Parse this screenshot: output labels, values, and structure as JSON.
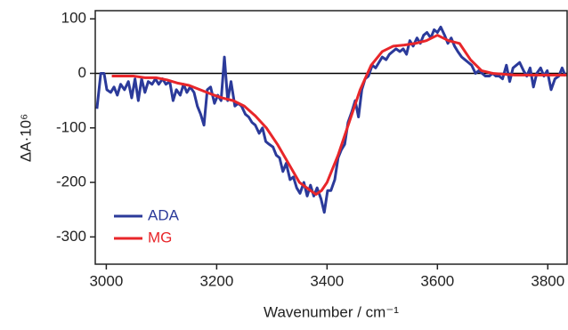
{
  "chart_data": {
    "type": "line",
    "x_label": "Wavenumber / cm⁻¹",
    "y_label": "ΔA·10⁶",
    "xlim": [
      2980,
      3835
    ],
    "ylim": [
      -350,
      115
    ],
    "xticks": [
      3000,
      3200,
      3400,
      3600,
      3800
    ],
    "yticks": [
      -300,
      -200,
      -100,
      0,
      100
    ],
    "zero_line": true,
    "legend": "lower-left",
    "series": [
      {
        "name": "ADA",
        "color": "#2b3a9a",
        "x": [
          2983,
          2990,
          2996,
          3001,
          3008,
          3014,
          3020,
          3026,
          3033,
          3040,
          3046,
          3052,
          3058,
          3064,
          3070,
          3076,
          3083,
          3089,
          3095,
          3102,
          3108,
          3115,
          3121,
          3127,
          3134,
          3140,
          3146,
          3152,
          3159,
          3165,
          3171,
          3177,
          3183,
          3189,
          3196,
          3202,
          3208,
          3214,
          3220,
          3226,
          3233,
          3239,
          3245,
          3252,
          3258,
          3264,
          3270,
          3277,
          3283,
          3289,
          3295,
          3302,
          3308,
          3314,
          3320,
          3326,
          3333,
          3339,
          3345,
          3351,
          3358,
          3364,
          3370,
          3376,
          3382,
          3389,
          3395,
          3401,
          3407,
          3414,
          3420,
          3426,
          3432,
          3438,
          3445,
          3451,
          3457,
          3463,
          3469,
          3475,
          3482,
          3488,
          3494,
          3500,
          3507,
          3513,
          3519,
          3525,
          3532,
          3538,
          3544,
          3550,
          3556,
          3563,
          3569,
          3575,
          3581,
          3588,
          3594,
          3600,
          3606,
          3613,
          3619,
          3625,
          3631,
          3637,
          3644,
          3650,
          3656,
          3662,
          3669,
          3675,
          3681,
          3687,
          3694,
          3700,
          3706,
          3712,
          3718,
          3725,
          3731,
          3737,
          3743,
          3749,
          3756,
          3762,
          3768,
          3774,
          3780,
          3787,
          3793,
          3799,
          3806,
          3813,
          3820,
          3826,
          3832
        ],
        "values": [
          -65,
          0,
          0,
          -30,
          -35,
          -25,
          -40,
          -20,
          -30,
          -15,
          -45,
          -10,
          -50,
          -10,
          -35,
          -15,
          -20,
          -10,
          -20,
          -10,
          -20,
          -15,
          -50,
          -30,
          -40,
          -20,
          -35,
          -25,
          -35,
          -60,
          -75,
          -95,
          -30,
          -25,
          -55,
          -40,
          -50,
          30,
          -50,
          -15,
          -60,
          -55,
          -60,
          -75,
          -80,
          -90,
          -95,
          -110,
          -100,
          -125,
          -130,
          -135,
          -150,
          -155,
          -180,
          -165,
          -195,
          -190,
          -210,
          -220,
          -200,
          -225,
          -205,
          -225,
          -210,
          -230,
          -255,
          -215,
          -215,
          -195,
          -155,
          -140,
          -130,
          -90,
          -70,
          -50,
          -80,
          -30,
          -10,
          -5,
          15,
          10,
          20,
          30,
          25,
          35,
          40,
          45,
          40,
          45,
          35,
          60,
          50,
          65,
          55,
          70,
          75,
          65,
          80,
          75,
          85,
          70,
          55,
          65,
          50,
          40,
          30,
          25,
          20,
          15,
          0,
          5,
          0,
          -5,
          -5,
          0,
          -5,
          -5,
          -10,
          15,
          -15,
          10,
          15,
          20,
          5,
          -5,
          10,
          -25,
          0,
          10,
          -5,
          5,
          -30,
          -10,
          -5,
          10,
          -5
        ]
      },
      {
        "name": "MG",
        "color": "#e8262a",
        "x": [
          3010,
          3030,
          3050,
          3070,
          3090,
          3110,
          3130,
          3150,
          3170,
          3190,
          3210,
          3230,
          3250,
          3270,
          3290,
          3310,
          3330,
          3350,
          3370,
          3380,
          3390,
          3400,
          3420,
          3440,
          3460,
          3480,
          3500,
          3520,
          3540,
          3560,
          3580,
          3600,
          3620,
          3640,
          3660,
          3680,
          3700,
          3740,
          3780,
          3820,
          3835
        ],
        "values": [
          -5,
          -5,
          -5,
          -8,
          -8,
          -12,
          -18,
          -22,
          -30,
          -38,
          -45,
          -50,
          -60,
          -78,
          -100,
          -130,
          -165,
          -200,
          -215,
          -222,
          -215,
          -200,
          -150,
          -90,
          -30,
          15,
          40,
          50,
          52,
          55,
          60,
          70,
          60,
          55,
          25,
          5,
          0,
          -3,
          -3,
          -3,
          -3
        ]
      }
    ]
  }
}
